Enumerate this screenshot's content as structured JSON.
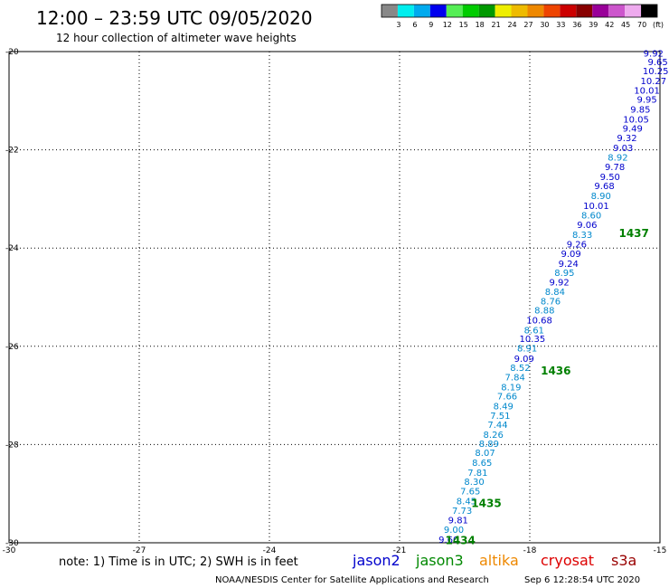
{
  "title": "12:00 – 23:59 UTC 09/05/2020",
  "subtitle": "12 hour collection of altimeter wave heights",
  "color_scale": {
    "labels": [
      "3",
      "6",
      "9",
      "12",
      "15",
      "18",
      "21",
      "24",
      "27",
      "30",
      "33",
      "36",
      "39",
      "42",
      "45",
      "70",
      "(ft)"
    ],
    "colors": [
      "#888888",
      "#00eeee",
      "#00aaee",
      "#0000ee",
      "#55ee55",
      "#00cc00",
      "#009900",
      "#eeee00",
      "#eebb00",
      "#ee8800",
      "#ee4400",
      "#cc0000",
      "#880000",
      "#990099",
      "#cc55cc",
      "#eeaaee",
      "#000000"
    ]
  },
  "note": "note: 1) Time is in UTC; 2) SWH is in feet",
  "satellites": [
    {
      "name": "jason2",
      "color": "#0000cc"
    },
    {
      "name": "jason3",
      "color": "#008800"
    },
    {
      "name": "altika",
      "color": "#ee8800"
    },
    {
      "name": "cryosat",
      "color": "#dd0000"
    },
    {
      "name": "s3a",
      "color": "#990000"
    }
  ],
  "credit": "NOAA/NESDIS Center for Satellite Applications and Research",
  "timestamp": "Sep  6 12:28:54 UTC 2020",
  "chart_data": {
    "type": "scatter",
    "title": "12:00 – 23:59 UTC 09/05/2020",
    "xlim": [
      -30,
      -15
    ],
    "ylim": [
      -30,
      -20
    ],
    "x_ticks": [
      "-30",
      "-27",
      "-24",
      "-21",
      "-18",
      "-15"
    ],
    "y_ticks": [
      "-20",
      "-22",
      "-24",
      "-26",
      "-28",
      "-30"
    ],
    "grid": true,
    "pass_labels": [
      {
        "label": "1437",
        "lon": -15.6,
        "lat": -23.7
      },
      {
        "label": "1436",
        "lon": -17.4,
        "lat": -26.5
      },
      {
        "label": "1435",
        "lon": -19.0,
        "lat": -29.2
      },
      {
        "label": "1434",
        "lon": -19.6,
        "lat": -29.95
      }
    ],
    "points": [
      {
        "v": "9.92",
        "lon": -15.15,
        "lat": -20.03,
        "c": "#0000cc"
      },
      {
        "v": "9.65",
        "lon": -15.05,
        "lat": -20.2,
        "c": "#0000cc"
      },
      {
        "v": "10.25",
        "lon": -15.1,
        "lat": -20.39,
        "c": "#0000cc"
      },
      {
        "v": "10.27",
        "lon": -15.15,
        "lat": -20.59,
        "c": "#0000cc"
      },
      {
        "v": "10.01",
        "lon": -15.3,
        "lat": -20.78,
        "c": "#0000cc"
      },
      {
        "v": "9.95",
        "lon": -15.3,
        "lat": -20.97,
        "c": "#0000cc"
      },
      {
        "v": "9.85",
        "lon": -15.45,
        "lat": -21.17,
        "c": "#0000cc"
      },
      {
        "v": "10.05",
        "lon": -15.55,
        "lat": -21.37,
        "c": "#0000cc"
      },
      {
        "v": "9.49",
        "lon": -15.63,
        "lat": -21.56,
        "c": "#0000cc"
      },
      {
        "v": "9.32",
        "lon": -15.76,
        "lat": -21.75,
        "c": "#0000cc"
      },
      {
        "v": "9.03",
        "lon": -15.85,
        "lat": -21.95,
        "c": "#0000cc"
      },
      {
        "v": "8.92",
        "lon": -15.97,
        "lat": -22.15,
        "c": "#0088cc"
      },
      {
        "v": "9.78",
        "lon": -16.04,
        "lat": -22.34,
        "c": "#0000cc"
      },
      {
        "v": "9.50",
        "lon": -16.15,
        "lat": -22.54,
        "c": "#0000cc"
      },
      {
        "v": "9.68",
        "lon": -16.28,
        "lat": -22.73,
        "c": "#0000cc"
      },
      {
        "v": "8.90",
        "lon": -16.36,
        "lat": -22.93,
        "c": "#0088cc"
      },
      {
        "v": "10.01",
        "lon": -16.47,
        "lat": -23.13,
        "c": "#0000cc"
      },
      {
        "v": "8.60",
        "lon": -16.58,
        "lat": -23.32,
        "c": "#0088cc"
      },
      {
        "v": "9.06",
        "lon": -16.68,
        "lat": -23.52,
        "c": "#0000cc"
      },
      {
        "v": "8.33",
        "lon": -16.79,
        "lat": -23.72,
        "c": "#0088cc"
      },
      {
        "v": "9.26",
        "lon": -16.92,
        "lat": -23.91,
        "c": "#0000cc"
      },
      {
        "v": "9.09",
        "lon": -17.05,
        "lat": -24.11,
        "c": "#0000cc"
      },
      {
        "v": "9.24",
        "lon": -17.11,
        "lat": -24.31,
        "c": "#0000cc"
      },
      {
        "v": "8.95",
        "lon": -17.2,
        "lat": -24.49,
        "c": "#0088cc"
      },
      {
        "v": "9.92",
        "lon": -17.32,
        "lat": -24.69,
        "c": "#0000cc"
      },
      {
        "v": "8.84",
        "lon": -17.42,
        "lat": -24.88,
        "c": "#0088cc"
      },
      {
        "v": "8.76",
        "lon": -17.52,
        "lat": -25.07,
        "c": "#0088cc"
      },
      {
        "v": "8.88",
        "lon": -17.66,
        "lat": -25.26,
        "c": "#0088cc"
      },
      {
        "v": "10.68",
        "lon": -17.78,
        "lat": -25.46,
        "c": "#0000cc"
      },
      {
        "v": "8.61",
        "lon": -17.9,
        "lat": -25.66,
        "c": "#0088cc"
      },
      {
        "v": "10.35",
        "lon": -17.94,
        "lat": -25.84,
        "c": "#0000cc"
      },
      {
        "v": "8.91",
        "lon": -18.06,
        "lat": -26.03,
        "c": "#0088cc"
      },
      {
        "v": "9.09",
        "lon": -18.13,
        "lat": -26.24,
        "c": "#0000cc"
      },
      {
        "v": "8.52",
        "lon": -18.22,
        "lat": -26.43,
        "c": "#0088cc"
      },
      {
        "v": "7.84",
        "lon": -18.34,
        "lat": -26.62,
        "c": "#0088cc"
      },
      {
        "v": "8.19",
        "lon": -18.43,
        "lat": -26.82,
        "c": "#0088cc"
      },
      {
        "v": "7.66",
        "lon": -18.52,
        "lat": -27.01,
        "c": "#0088cc"
      },
      {
        "v": "8.49",
        "lon": -18.61,
        "lat": -27.21,
        "c": "#0088cc"
      },
      {
        "v": "7.51",
        "lon": -18.68,
        "lat": -27.4,
        "c": "#0088cc"
      },
      {
        "v": "7.44",
        "lon": -18.74,
        "lat": -27.59,
        "c": "#0088cc"
      },
      {
        "v": "8.26",
        "lon": -18.84,
        "lat": -27.79,
        "c": "#0088cc"
      },
      {
        "v": "8.89",
        "lon": -18.94,
        "lat": -27.97,
        "c": "#0088cc"
      },
      {
        "v": "8.07",
        "lon": -19.03,
        "lat": -28.16,
        "c": "#0088cc"
      },
      {
        "v": "8.65",
        "lon": -19.1,
        "lat": -28.36,
        "c": "#0088cc"
      },
      {
        "v": "7.81",
        "lon": -19.2,
        "lat": -28.56,
        "c": "#0088cc"
      },
      {
        "v": "8.30",
        "lon": -19.28,
        "lat": -28.75,
        "c": "#0088cc"
      },
      {
        "v": "7.65",
        "lon": -19.37,
        "lat": -28.94,
        "c": "#0088cc"
      },
      {
        "v": "8.45",
        "lon": -19.46,
        "lat": -29.14,
        "c": "#0088cc"
      },
      {
        "v": "7.73",
        "lon": -19.56,
        "lat": -29.34,
        "c": "#0088cc"
      },
      {
        "v": "9.81",
        "lon": -19.65,
        "lat": -29.53,
        "c": "#0000cc"
      },
      {
        "v": "9.00",
        "lon": -19.75,
        "lat": -29.72,
        "c": "#0088cc"
      },
      {
        "v": "9.60",
        "lon": -19.87,
        "lat": -29.93,
        "c": "#0000cc"
      }
    ]
  }
}
